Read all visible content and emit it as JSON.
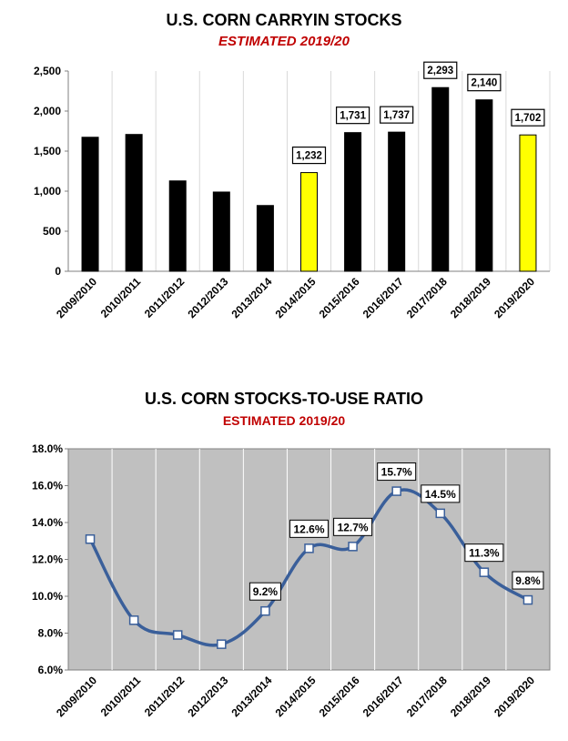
{
  "charts": [
    {
      "title": "U.S. CORN CARRYIN STOCKS",
      "subtitle": "ESTIMATED 2019/20"
    },
    {
      "title": "U.S. CORN STOCKS-TO-USE RATIO",
      "subtitle": "ESTIMATED 2019/20"
    }
  ],
  "chart_data": [
    {
      "type": "bar",
      "title": "U.S. CORN CARRYIN STOCKS",
      "subtitle": "ESTIMATED 2019/20",
      "categories": [
        "2009/2010",
        "2010/2011",
        "2011/2012",
        "2012/2013",
        "2013/2014",
        "2014/2015",
        "2015/2016",
        "2016/2017",
        "2017/2018",
        "2018/2019",
        "2019/2020"
      ],
      "values": [
        1673,
        1708,
        1128,
        989,
        821,
        1232,
        1731,
        1737,
        2293,
        2140,
        1702
      ],
      "data_labels": [
        null,
        null,
        null,
        null,
        null,
        "1,232",
        "1,731",
        "1,737",
        "2,293",
        "2,140",
        "1,702"
      ],
      "highlighted": [
        "2014/2015",
        "2019/2020"
      ],
      "bar_color": "#000000",
      "highlight_color": "#ffff00",
      "ylim": [
        0,
        2500
      ],
      "yticks": [
        "0",
        "500",
        "1,000",
        "1,500",
        "2,000",
        "2,500"
      ],
      "ytick_values": [
        0,
        500,
        1000,
        1500,
        2000,
        2500
      ],
      "grid": "vertical",
      "legend": "none"
    },
    {
      "type": "line",
      "title": "U.S. CORN STOCKS-TO-USE RATIO",
      "subtitle": "ESTIMATED 2019/20",
      "categories": [
        "2009/2010",
        "2010/2011",
        "2011/2012",
        "2012/2013",
        "2013/2014",
        "2014/2015",
        "2015/2016",
        "2016/2017",
        "2017/2018",
        "2018/2019",
        "2019/2020"
      ],
      "values": [
        13.1,
        8.7,
        7.9,
        7.4,
        9.2,
        12.6,
        12.7,
        15.7,
        14.5,
        11.3,
        9.8
      ],
      "data_labels": [
        null,
        null,
        null,
        null,
        "9.2%",
        "12.6%",
        "12.7%",
        "15.7%",
        "14.5%",
        "11.3%",
        "9.8%"
      ],
      "line_color": "#3a5f9a",
      "plot_background": "#c0c0c0",
      "ylim": [
        6.0,
        18.0
      ],
      "yticks": [
        "6.0%",
        "8.0%",
        "10.0%",
        "12.0%",
        "14.0%",
        "16.0%",
        "18.0%"
      ],
      "ytick_values": [
        6,
        8,
        10,
        12,
        14,
        16,
        18
      ],
      "grid": "vertical",
      "legend": "none"
    }
  ]
}
